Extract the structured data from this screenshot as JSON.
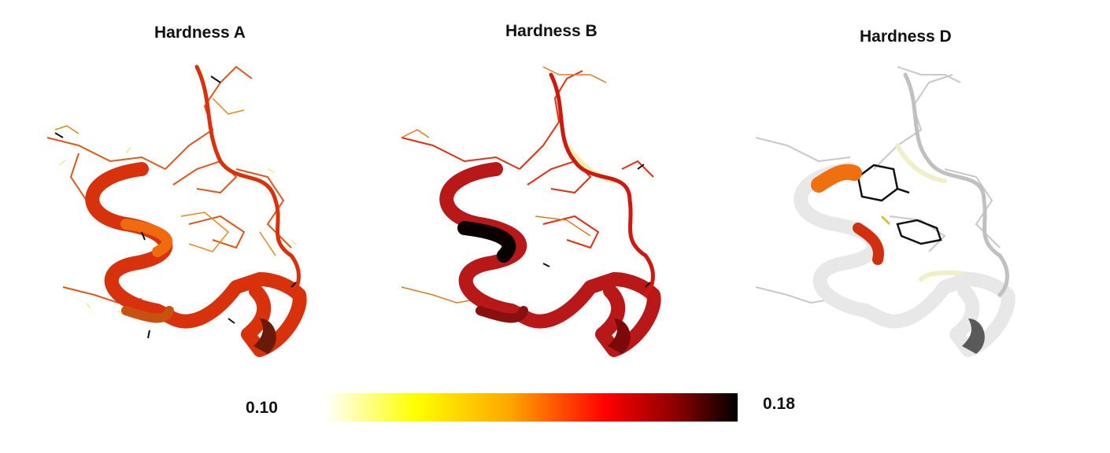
{
  "panels": [
    {
      "title": "Hardness A",
      "scheme": "orange"
    },
    {
      "title": "Hardness B",
      "scheme": "red"
    },
    {
      "title": "Hardness D",
      "scheme": "white"
    }
  ],
  "colorbar": {
    "min_label": "0.10",
    "max_label": "0.18",
    "stops": [
      "#ffffff",
      "#ffff00",
      "#ffa500",
      "#ff0000",
      "#8b0000",
      "#000000"
    ]
  }
}
